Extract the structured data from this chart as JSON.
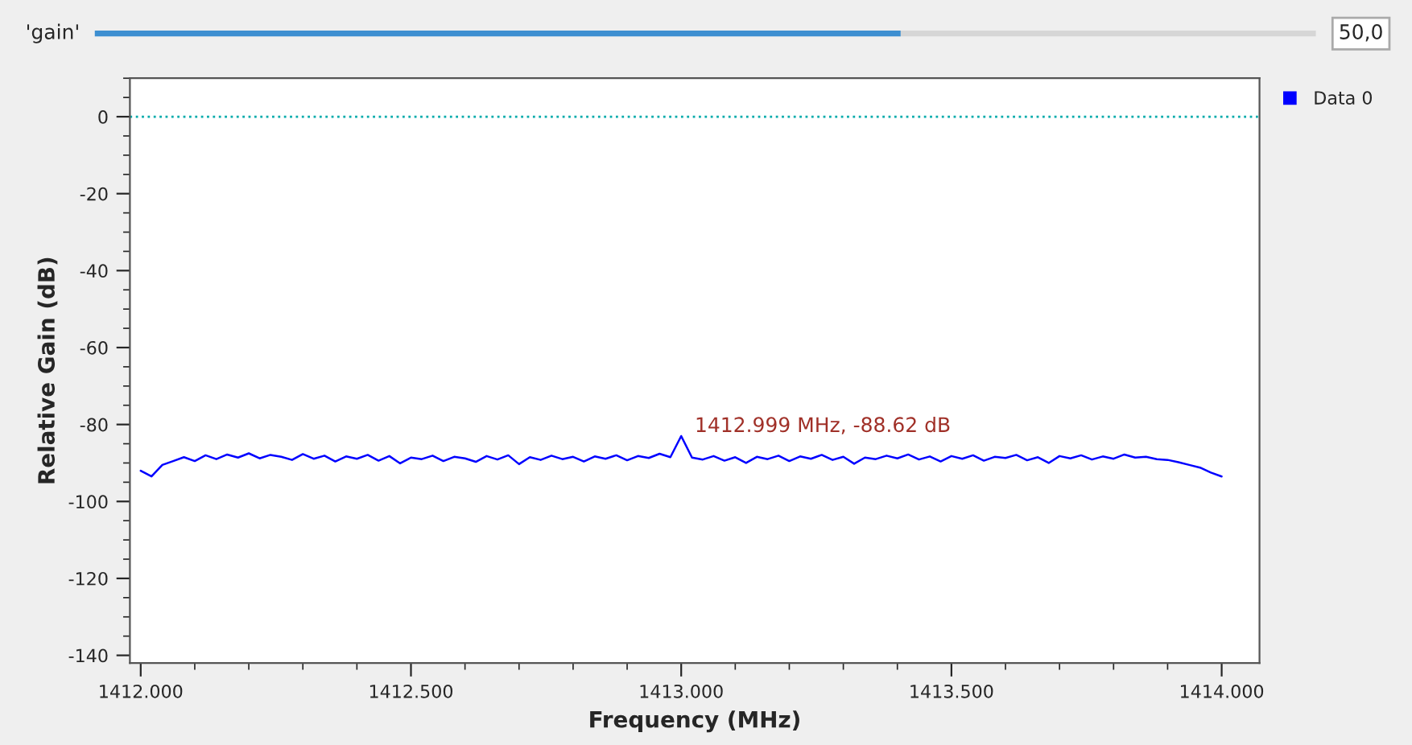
{
  "chart_data": {
    "type": "line",
    "xlabel": "Frequency (MHz)",
    "ylabel": "Relative Gain (dB)",
    "x": [
      1412.0,
      1412.02,
      1412.04,
      1412.06,
      1412.08,
      1412.1,
      1412.12,
      1412.14,
      1412.16,
      1412.18,
      1412.2,
      1412.22,
      1412.24,
      1412.26,
      1412.28,
      1412.3,
      1412.32,
      1412.34,
      1412.36,
      1412.38,
      1412.4,
      1412.42,
      1412.44,
      1412.46,
      1412.48,
      1412.5,
      1412.52,
      1412.54,
      1412.56,
      1412.58,
      1412.6,
      1412.62,
      1412.64,
      1412.66,
      1412.68,
      1412.7,
      1412.72,
      1412.74,
      1412.76,
      1412.78,
      1412.8,
      1412.82,
      1412.84,
      1412.86,
      1412.88,
      1412.9,
      1412.92,
      1412.94,
      1412.96,
      1412.98,
      1413.0,
      1413.02,
      1413.04,
      1413.06,
      1413.08,
      1413.1,
      1413.12,
      1413.14,
      1413.16,
      1413.18,
      1413.2,
      1413.22,
      1413.24,
      1413.26,
      1413.28,
      1413.3,
      1413.32,
      1413.34,
      1413.36,
      1413.38,
      1413.4,
      1413.42,
      1413.44,
      1413.46,
      1413.48,
      1413.5,
      1413.52,
      1413.54,
      1413.56,
      1413.58,
      1413.6,
      1413.62,
      1413.64,
      1413.66,
      1413.68,
      1413.7,
      1413.72,
      1413.74,
      1413.76,
      1413.78,
      1413.8,
      1413.82,
      1413.84,
      1413.86,
      1413.88,
      1413.9,
      1413.92,
      1413.94,
      1413.96,
      1413.98,
      1414.0
    ],
    "series": [
      {
        "name": "Data 0",
        "color": "#0000ff",
        "values": [
          -92.0,
          -93.5,
          -90.5,
          -89.5,
          -88.5,
          -89.5,
          -88.0,
          -89.0,
          -87.8,
          -88.6,
          -87.5,
          -88.8,
          -87.9,
          -88.4,
          -89.2,
          -87.7,
          -88.9,
          -88.1,
          -89.6,
          -88.3,
          -88.9,
          -87.9,
          -89.4,
          -88.2,
          -90.1,
          -88.6,
          -89.0,
          -88.1,
          -89.5,
          -88.4,
          -88.8,
          -89.7,
          -88.2,
          -89.1,
          -88.0,
          -90.3,
          -88.5,
          -89.2,
          -88.1,
          -89.0,
          -88.4,
          -89.6,
          -88.3,
          -88.9,
          -88.0,
          -89.3,
          -88.2,
          -88.7,
          -87.6,
          -88.5,
          -83.0,
          -88.6,
          -89.1,
          -88.2,
          -89.4,
          -88.5,
          -90.0,
          -88.4,
          -89.0,
          -88.1,
          -89.5,
          -88.3,
          -88.9,
          -87.9,
          -89.2,
          -88.4,
          -90.2,
          -88.6,
          -89.0,
          -88.1,
          -88.8,
          -87.8,
          -89.1,
          -88.3,
          -89.6,
          -88.2,
          -88.9,
          -88.0,
          -89.4,
          -88.4,
          -88.7,
          -87.9,
          -89.3,
          -88.5,
          -90.0,
          -88.2,
          -88.8,
          -88.0,
          -89.1,
          -88.3,
          -88.9,
          -87.8,
          -88.6,
          -88.4,
          -89.0,
          -89.2,
          -89.8,
          -90.5,
          -91.2,
          -92.5,
          -93.5
        ]
      }
    ],
    "xlim": [
      1411.98,
      1414.07
    ],
    "ylim": [
      -142,
      10
    ],
    "xticks": [
      {
        "value": 1412.0,
        "label": "1412.000"
      },
      {
        "value": 1412.5,
        "label": "1412.500"
      },
      {
        "value": 1413.0,
        "label": "1413.000"
      },
      {
        "value": 1413.5,
        "label": "1413.500"
      },
      {
        "value": 1414.0,
        "label": "1414.000"
      }
    ],
    "yticks": [
      -140,
      -120,
      -100,
      -80,
      -60,
      -40,
      -20,
      0
    ],
    "ref_lines": [
      {
        "axis": "y",
        "value": 0,
        "color": "#00aaaa",
        "line_style": "dotted"
      }
    ],
    "annotations": [
      "1412.999 MHz, -88.62 dB",
      "'gain'",
      "50,0"
    ],
    "legend": "right",
    "grid": false,
    "marker": "none",
    "line_style": "solid"
  }
}
